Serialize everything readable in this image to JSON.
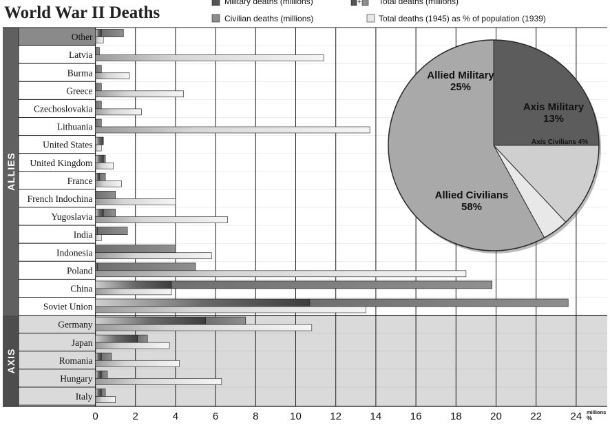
{
  "chart_data": {
    "type": "bar",
    "title": "World War II Deaths",
    "legend": {
      "military": "Military deaths (millions)",
      "civilian": "Civilian deaths (millions)",
      "total": "Total deaths (millions)",
      "percent": "Total deaths (1945) as % of population (1939)"
    },
    "groups": {
      "allies": "ALLIES",
      "axis": "AXIS"
    },
    "x_ticks": [
      "0",
      "2",
      "4",
      "6",
      "8",
      "10",
      "12",
      "14",
      "16",
      "18",
      "20",
      "22",
      "24"
    ],
    "x_unit_top": "millions",
    "x_unit_bottom": "%",
    "xlim": [
      0,
      25
    ],
    "categories": [
      "Other",
      "Latvia",
      "Burma",
      "Greece",
      "Czechoslovakia",
      "Lithuania",
      "United States",
      "United Kingdom",
      "France",
      "French Indochina",
      "Yugoslavia",
      "India",
      "Indonesia",
      "Poland",
      "China",
      "Soviet Union",
      "Germany",
      "Japan",
      "Romania",
      "Hungary",
      "Italy"
    ],
    "category_group": [
      "allies",
      "allies",
      "allies",
      "allies",
      "allies",
      "allies",
      "allies",
      "allies",
      "allies",
      "allies",
      "allies",
      "allies",
      "allies",
      "allies",
      "allies",
      "allies",
      "axis",
      "axis",
      "axis",
      "axis",
      "axis"
    ],
    "series": [
      {
        "name": "Military deaths (millions)",
        "values": [
          0.3,
          0.0,
          0.0,
          0.0,
          0.0,
          0.0,
          0.4,
          0.4,
          0.2,
          0.0,
          0.4,
          0.1,
          0.0,
          0.1,
          3.8,
          10.7,
          5.5,
          2.1,
          0.3,
          0.3,
          0.3
        ]
      },
      {
        "name": "Civilian deaths (millions)",
        "values": [
          1.1,
          0.2,
          0.3,
          0.3,
          0.3,
          0.3,
          0.0,
          0.1,
          0.3,
          1.0,
          0.6,
          1.5,
          4.0,
          4.9,
          16.0,
          12.9,
          2.0,
          0.5,
          0.5,
          0.3,
          0.2
        ]
      },
      {
        "name": "Total deaths (1945) as % of population (1939)",
        "values": [
          0.4,
          11.4,
          1.7,
          4.4,
          2.3,
          13.7,
          0.3,
          0.9,
          1.3,
          4.0,
          6.6,
          0.3,
          5.8,
          18.5,
          3.8,
          13.5,
          10.8,
          3.7,
          4.2,
          6.3,
          1.0
        ]
      }
    ],
    "pie": {
      "type": "pie",
      "slices": [
        {
          "label": "Allied Military",
          "value": 25,
          "display": "25%",
          "color": "#5c5c5c"
        },
        {
          "label": "Axis Military",
          "value": 13,
          "display": "13%",
          "color": "#cfcfcf"
        },
        {
          "label": "Axis Civilians",
          "value": 4,
          "display": "Axis Civilians 4%",
          "color": "#e8e8e8"
        },
        {
          "label": "Allied Civilians",
          "value": 58,
          "display": "58%",
          "color": "#a9a9a9"
        }
      ]
    },
    "colors": {
      "military": "#4a4a4a",
      "civilian": "#8c8c8c",
      "percent": "#e6e6e6",
      "header": "#8a8a8a",
      "allies_band": "#606060",
      "axis_band": "#4d4d4d",
      "axis_area": "#dadada"
    }
  }
}
